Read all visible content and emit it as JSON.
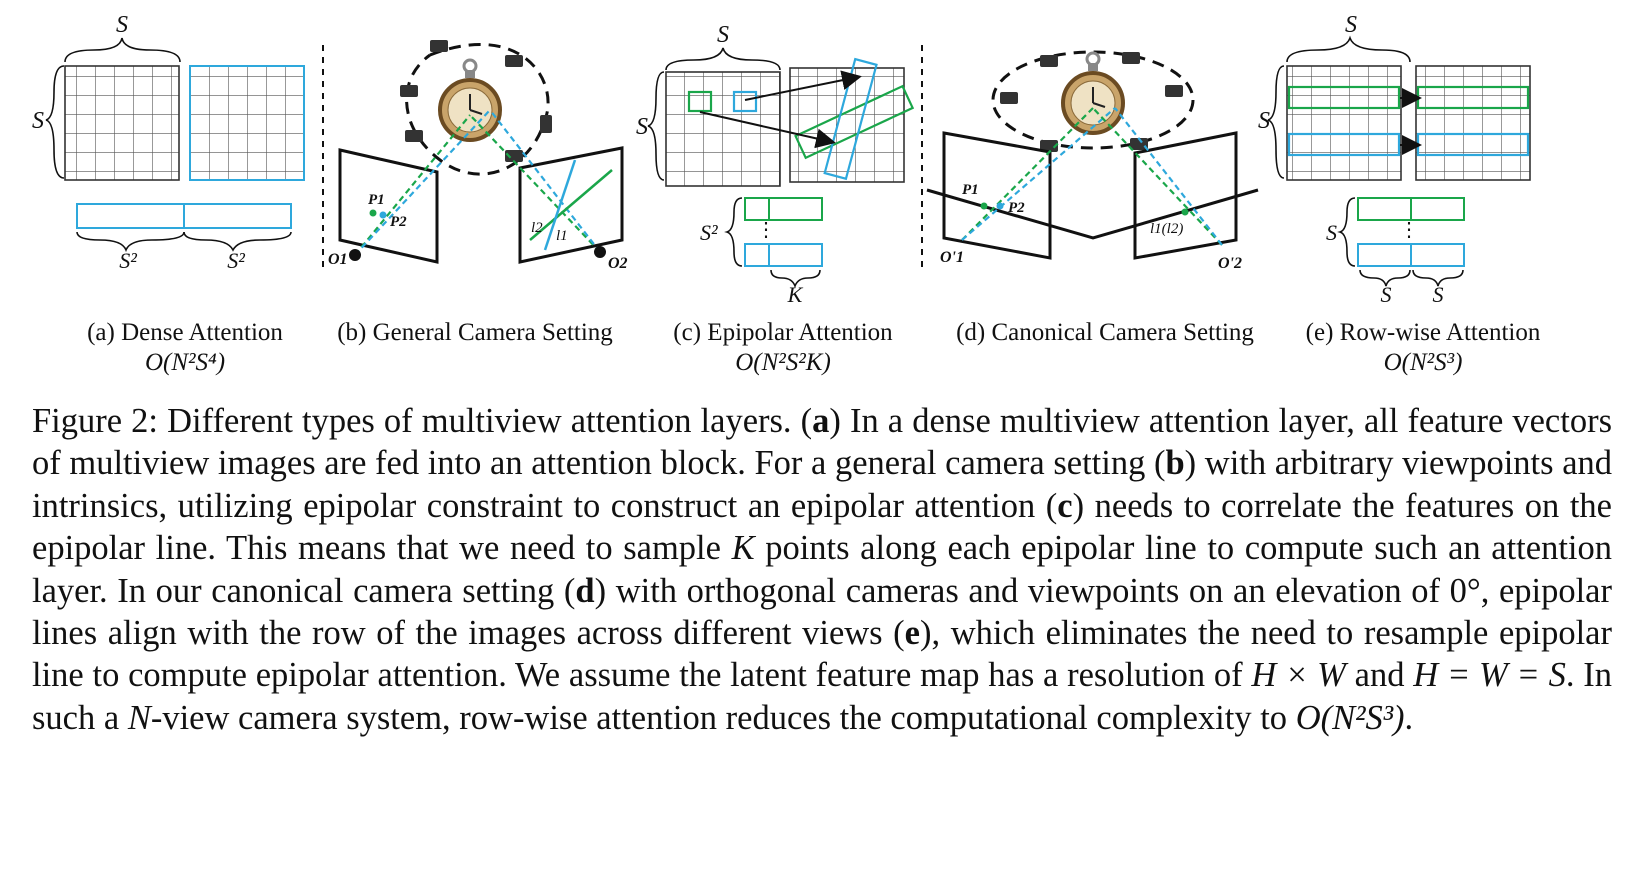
{
  "panels": {
    "a": {
      "label": "(a) Dense Attention",
      "complexity": "O(N²S⁴)",
      "dim_top": "S",
      "dim_left": "S",
      "dim_bottom_1": "S²",
      "dim_bottom_2": "S²"
    },
    "b": {
      "label": "(b) General Camera Setting",
      "points": [
        "P1",
        "P2",
        "l2",
        "l1",
        "O1",
        "O2"
      ]
    },
    "c": {
      "label": "(c) Epipolar Attention",
      "complexity": "O(N²S²K)",
      "dim_top": "S",
      "dim_left": "S",
      "dim_stack": "S²",
      "dim_k": "K",
      "dots": "⋮"
    },
    "d": {
      "label": "(d) Canonical Camera Setting",
      "points": [
        "P1",
        "P2",
        "l1(l2)",
        "O'1",
        "O'2"
      ]
    },
    "e": {
      "label": "(e) Row-wise Attention",
      "complexity": "O(N²S³)",
      "dim_top": "S",
      "dim_left": "S",
      "dim_stack": "S",
      "dim_b1": "S",
      "dim_b2": "S",
      "dots": "⋮"
    }
  },
  "colors": {
    "green": "#1aa64a",
    "blue": "#2ea8dc",
    "grid": "#555555",
    "camera_line": "#111111"
  },
  "icons": [
    "grid-icon",
    "clock-icon",
    "camera-icon",
    "image-plane-icon"
  ],
  "caption": {
    "s1": "Figure 2: Different types of multiview attention layers. (",
    "a": "a",
    "s2": ") In a dense multiview attention layer, all feature vectors of multiview images are fed into an attention block. For a general camera setting (",
    "b": "b",
    "s3": ") with arbitrary viewpoints and intrinsics, utilizing epipolar constraint to construct an epipolar attention (",
    "c": "c",
    "s4": ") needs to correlate the features on the epipolar line. This means that we need to sample ",
    "K": "K",
    "s5": " points along each epipolar line to compute such an attention layer. In our canonical camera setting (",
    "d": "d",
    "s6": ") with orthogonal cameras and viewpoints on an elevation of 0°, epipolar lines align with the row of the images across different views (",
    "e": "e",
    "s7": "), which eliminates the need to resample epipolar line to compute epipolar attention. We assume the latent feature map has a resolution of ",
    "HxW": "H × W",
    "s8": " and ",
    "HWS": "H = W = S",
    "s9": ". In such a ",
    "N": "N",
    "s10": "-view camera system, row-wise attention reduces the computational complexity to ",
    "final": "O(N²S³)",
    "s11": "."
  }
}
